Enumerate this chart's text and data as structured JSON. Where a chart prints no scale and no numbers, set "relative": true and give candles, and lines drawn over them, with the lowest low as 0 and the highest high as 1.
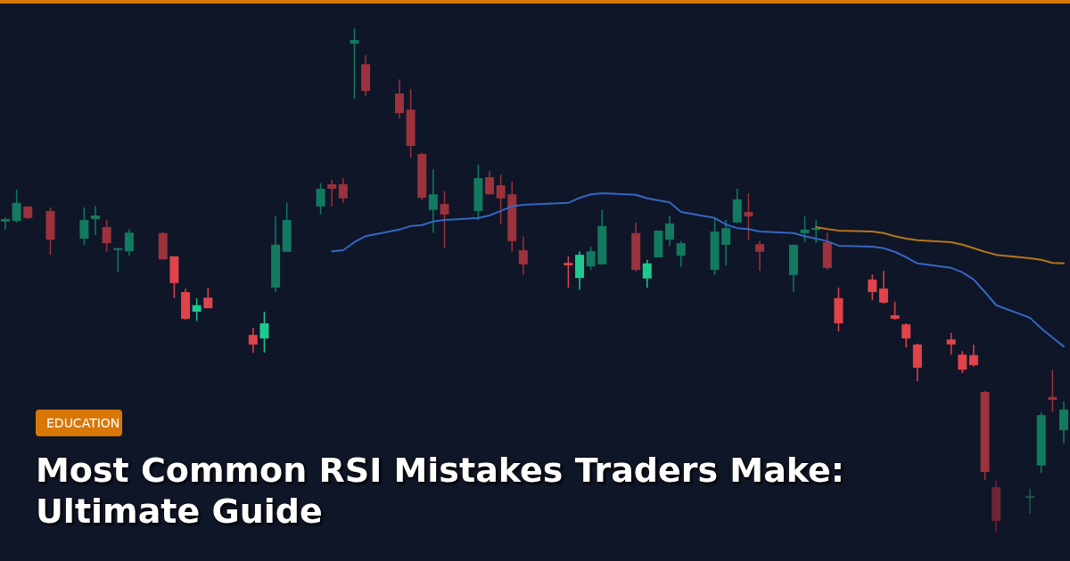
{
  "chart_data": {
    "type": "candlestick",
    "relative": true,
    "title": "Most Common RSI Mistakes Traders Make: Ultimate Guide",
    "annotations": [
      "EDUCATION"
    ],
    "categories": [
      null,
      null,
      null,
      null,
      null,
      null,
      null,
      null,
      null,
      null,
      null,
      null,
      null,
      null,
      null,
      null,
      null,
      null,
      null,
      null,
      null,
      null,
      null,
      null,
      null,
      null,
      null,
      null,
      null,
      null,
      null,
      null,
      null,
      null,
      null,
      null,
      null,
      null,
      null,
      null,
      null,
      null,
      null,
      null,
      null,
      null,
      null,
      null,
      null,
      null,
      null,
      null,
      null,
      null,
      null,
      null,
      null,
      null,
      null,
      null,
      null,
      null,
      null,
      null,
      null,
      null,
      null,
      null,
      null,
      null,
      null,
      null,
      null,
      null,
      null,
      null,
      null,
      null,
      null,
      null,
      null,
      null,
      null,
      null,
      null,
      null,
      null,
      null,
      null,
      null,
      null,
      null,
      null,
      null,
      null
    ],
    "ohlc": [
      [
        0.617,
        0.625,
        0.601,
        0.622
      ],
      [
        0.618,
        0.68,
        0.615,
        0.654
      ],
      [
        0.647,
        0.647,
        0.622,
        0.624
      ],
      null,
      [
        0.638,
        0.645,
        0.551,
        0.581
      ],
      null,
      null,
      [
        0.583,
        0.645,
        0.571,
        0.62
      ],
      [
        0.622,
        0.648,
        0.59,
        0.629
      ],
      [
        0.606,
        0.62,
        0.557,
        0.574
      ],
      [
        0.562,
        0.565,
        0.516,
        0.564
      ],
      [
        0.558,
        0.602,
        0.549,
        0.595
      ],
      null,
      null,
      [
        0.594,
        0.597,
        0.541,
        0.542
      ],
      [
        0.548,
        0.548,
        0.465,
        0.495
      ],
      [
        0.477,
        0.484,
        0.422,
        0.424
      ],
      [
        0.438,
        0.465,
        0.42,
        0.451
      ],
      [
        0.466,
        0.486,
        0.445,
        0.445
      ],
      null,
      null,
      null,
      [
        0.392,
        0.406,
        0.357,
        0.373
      ],
      [
        0.385,
        0.438,
        0.357,
        0.415
      ],
      [
        0.486,
        0.627,
        0.477,
        0.571
      ],
      [
        0.557,
        0.654,
        0.557,
        0.62
      ],
      null,
      null,
      [
        0.647,
        0.693,
        0.631,
        0.682
      ],
      [
        0.691,
        0.7,
        0.647,
        0.682
      ],
      [
        0.691,
        0.703,
        0.654,
        0.663
      ],
      [
        0.97,
        1,
        0.86,
        0.977
      ],
      [
        0.929,
        0.947,
        0.866,
        0.876
      ],
      null,
      null,
      [
        0.871,
        0.899,
        0.822,
        0.832
      ],
      [
        0.839,
        0.88,
        0.744,
        0.767
      ],
      [
        0.751,
        0.753,
        0.659,
        0.664
      ],
      [
        0.64,
        0.721,
        0.595,
        0.671
      ],
      [
        0.652,
        0.678,
        0.565,
        0.631
      ],
      null,
      null,
      [
        0.638,
        0.73,
        0.62,
        0.703
      ],
      [
        0.705,
        0.717,
        0.67,
        0.671
      ],
      [
        0.689,
        0.71,
        0.611,
        0.663
      ],
      [
        0.671,
        0.696,
        0.558,
        0.578
      ],
      [
        0.56,
        0.587,
        0.511,
        0.532
      ],
      null,
      null,
      null,
      [
        0.535,
        0.548,
        0.486,
        0.53
      ],
      [
        0.505,
        0.558,
        0.482,
        0.551
      ],
      [
        0.528,
        0.567,
        0.521,
        0.558
      ],
      [
        0.532,
        0.64,
        0.532,
        0.608
      ],
      null,
      null,
      [
        0.594,
        0.615,
        0.518,
        0.521
      ],
      [
        0.504,
        0.541,
        0.486,
        0.534
      ],
      [
        0.546,
        0.599,
        0.546,
        0.599
      ],
      [
        0.581,
        0.629,
        0.569,
        0.613
      ],
      [
        0.549,
        0.578,
        0.527,
        0.574
      ],
      null,
      null,
      [
        0.521,
        0.625,
        0.511,
        0.597
      ],
      [
        0.571,
        0.62,
        0.53,
        0.604
      ],
      [
        0.615,
        0.682,
        0.615,
        0.661
      ],
      [
        0.636,
        0.673,
        0.581,
        0.627
      ],
      [
        0.572,
        0.578,
        0.519,
        0.557
      ],
      null,
      null,
      [
        0.511,
        0.571,
        0.477,
        0.571
      ],
      [
        0.594,
        0.627,
        0.576,
        0.601
      ],
      [
        0.601,
        0.62,
        0.574,
        0.604
      ],
      [
        0.576,
        0.595,
        0.521,
        0.525
      ],
      [
        0.465,
        0.486,
        0.399,
        0.415
      ],
      null,
      null,
      [
        0.502,
        0.512,
        0.461,
        0.477
      ],
      [
        0.484,
        0.519,
        0.454,
        0.456
      ],
      [
        0.431,
        0.458,
        0.422,
        0.424
      ],
      [
        0.413,
        0.415,
        0.367,
        0.385
      ],
      [
        0.373,
        0.375,
        0.3,
        0.327
      ],
      null,
      null,
      [
        0.383,
        0.396,
        0.353,
        0.373
      ],
      [
        0.353,
        0.36,
        0.316,
        0.323
      ],
      [
        0.352,
        0.373,
        0.329,
        0.332
      ],
      [
        0.279,
        0.281,
        0.104,
        0.12
      ],
      [
        0.09,
        0.104,
        0,
        0.023
      ],
      null,
      null,
      [
        0.071,
        0.087,
        0.037,
        0.072
      ],
      [
        0.133,
        0.239,
        0.118,
        0.233
      ],
      [
        0.269,
        0.323,
        0.24,
        0.263
      ],
      [
        0.203,
        0.26,
        0.177,
        0.244
      ]
    ],
    "colors": [
      "#127a5e",
      "#127a5e",
      "#9b323c",
      null,
      "#9b323c",
      null,
      null,
      "#127a5e",
      "#127a5e",
      "#9b323c",
      "#127a5e",
      "#127a5e",
      null,
      null,
      "#9b323c",
      "#e0434a",
      "#e0434a",
      "#1ec98f",
      "#e0434a",
      null,
      null,
      null,
      "#e0434a",
      "#1ec98f",
      "#127a5e",
      "#127a5e",
      null,
      null,
      "#127a5e",
      "#9b323c",
      "#9b323c",
      "#127a5e",
      "#9b323c",
      null,
      null,
      "#9b323c",
      "#9b323c",
      "#9b323c",
      "#127a5e",
      "#9b323c",
      null,
      null,
      "#127a5e",
      "#9b323c",
      "#9b323c",
      "#9b323c",
      "#9b323c",
      null,
      null,
      null,
      "#e0434a",
      "#1ec98f",
      "#127a5e",
      "#127a5e",
      null,
      null,
      "#9b323c",
      "#1ec98f",
      "#127a5e",
      "#127a5e",
      "#127a5e",
      null,
      null,
      "#127a5e",
      "#127a5e",
      "#127a5e",
      "#9b323c",
      "#9b323c",
      null,
      null,
      "#127a5e",
      "#127a5e",
      "#127a5e",
      "#9b323c",
      "#e0434a",
      null,
      null,
      "#e0434a",
      "#e0434a",
      "#e0434a",
      "#e0434a",
      "#e0434a",
      null,
      null,
      "#e0434a",
      "#e0434a",
      "#e0434a",
      "#9b323c",
      "#6b2536",
      null,
      null,
      "#1d5a4a",
      "#127a5e",
      "#9b323c",
      "#127a5e"
    ],
    "series": [
      {
        "type": "line",
        "color": "#3567c4",
        "values": [
          null,
          null,
          null,
          null,
          null,
          null,
          null,
          null,
          null,
          null,
          null,
          null,
          null,
          null,
          null,
          null,
          null,
          null,
          null,
          null,
          null,
          null,
          null,
          null,
          null,
          null,
          null,
          null,
          null,
          0.558,
          0.56,
          0.576,
          0.588,
          null,
          null,
          0.601,
          0.608,
          0.61,
          0.617,
          0.62,
          null,
          null,
          0.624,
          0.629,
          0.638,
          0.647,
          0.65,
          null,
          null,
          null,
          0.654,
          0.664,
          0.671,
          0.673,
          null,
          null,
          0.67,
          0.663,
          0.659,
          0.655,
          0.636,
          null,
          null,
          0.624,
          0.611,
          0.604,
          0.602,
          0.597,
          null,
          null,
          0.594,
          0.588,
          0.583,
          0.578,
          0.569,
          null,
          null,
          0.567,
          0.564,
          0.557,
          0.546,
          0.534,
          null,
          null,
          0.525,
          0.516,
          0.502,
          0.477,
          0.451,
          null,
          null,
          0.426,
          0.405,
          0.387,
          0.369
        ]
      },
      {
        "type": "line",
        "color": "#b5761a",
        "values": [
          null,
          null,
          null,
          null,
          null,
          null,
          null,
          null,
          null,
          null,
          null,
          null,
          null,
          null,
          null,
          null,
          null,
          null,
          null,
          null,
          null,
          null,
          null,
          null,
          null,
          null,
          null,
          null,
          null,
          null,
          null,
          null,
          null,
          null,
          null,
          null,
          null,
          null,
          null,
          null,
          null,
          null,
          null,
          null,
          null,
          null,
          null,
          null,
          null,
          null,
          null,
          null,
          null,
          null,
          null,
          null,
          null,
          null,
          null,
          null,
          null,
          null,
          null,
          null,
          null,
          null,
          null,
          null,
          null,
          null,
          null,
          null,
          0.606,
          0.602,
          0.599,
          null,
          null,
          0.597,
          0.594,
          0.588,
          0.583,
          0.58,
          null,
          null,
          0.576,
          0.571,
          0.564,
          0.557,
          0.551,
          null,
          null,
          0.544,
          0.541,
          0.535,
          0.534
        ]
      }
    ]
  }
}
